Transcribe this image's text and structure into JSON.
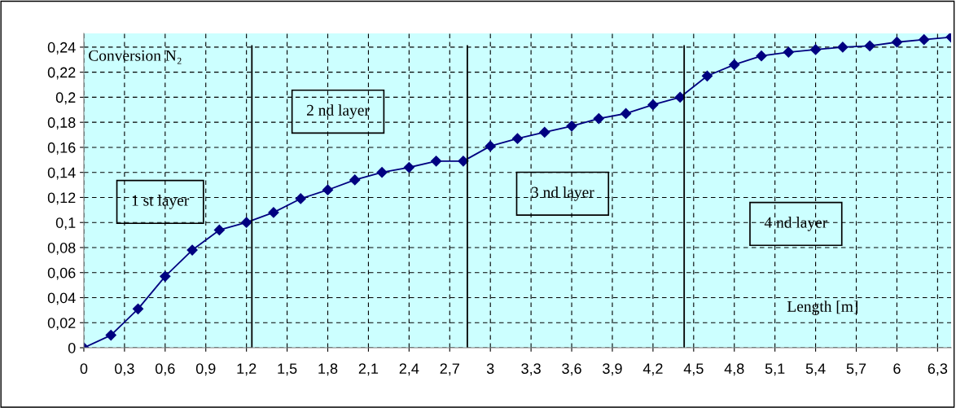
{
  "chart_data": {
    "type": "line",
    "xlabel": "Length [m]",
    "ylabel": "Conversion N₂",
    "x": [
      0,
      0.2,
      0.4,
      0.6,
      0.8,
      1.0,
      1.2,
      1.4,
      1.6,
      1.8,
      2.0,
      2.2,
      2.4,
      2.6,
      2.8,
      3.0,
      3.2,
      3.4,
      3.6,
      3.8,
      4.0,
      4.2,
      4.4,
      4.6,
      4.8,
      5.0,
      5.2,
      5.4,
      5.6,
      5.8,
      6.0,
      6.2,
      6.4
    ],
    "series": [
      {
        "color": "#000080",
        "values": [
          0,
          0.01,
          0.031,
          0.057,
          0.078,
          0.094,
          0.1,
          0.108,
          0.119,
          0.126,
          0.134,
          0.14,
          0.144,
          0.149,
          0.149,
          0.161,
          0.167,
          0.172,
          0.177,
          0.183,
          0.187,
          0.194,
          0.2,
          0.217,
          0.226,
          0.233,
          0.236,
          0.238,
          0.24,
          0.241,
          0.244,
          0.246,
          0.248
        ]
      }
    ],
    "marker": "diamond",
    "line_style": "solid",
    "grid": true,
    "legend": false,
    "xlim": [
      0,
      6.4
    ],
    "xticks": [
      0,
      {
        "value": 0.3,
        "label": "0,3"
      },
      {
        "value": 0.6,
        "label": "0,6"
      },
      {
        "value": 0.9,
        "label": "0,9"
      },
      {
        "value": 1.2,
        "label": "1,2"
      },
      {
        "value": 1.5,
        "label": "1,5"
      },
      {
        "value": 1.8,
        "label": "1,8"
      },
      {
        "value": 2.1,
        "label": "2,1"
      },
      {
        "value": 2.4,
        "label": "2,4"
      },
      {
        "value": 2.7,
        "label": "2,7"
      },
      3,
      {
        "value": 3.3,
        "label": "3,3"
      },
      {
        "value": 3.6,
        "label": "3,6"
      },
      {
        "value": 3.9,
        "label": "3,9"
      },
      {
        "value": 4.2,
        "label": "4,2"
      },
      {
        "value": 4.5,
        "label": "4,5"
      },
      {
        "value": 4.8,
        "label": "4,8"
      },
      {
        "value": 5.1,
        "label": "5,1"
      },
      {
        "value": 5.4,
        "label": "5,4"
      },
      {
        "value": 5.7,
        "label": "5,7"
      },
      6,
      {
        "value": 6.3,
        "label": "6,3"
      }
    ],
    "ylim": [
      0,
      0.251
    ],
    "yticks": [
      0,
      {
        "value": 0.02,
        "label": "0,02"
      },
      {
        "value": 0.04,
        "label": "0,04"
      },
      {
        "value": 0.06,
        "label": "0,06"
      },
      {
        "value": 0.08,
        "label": "0,08"
      },
      {
        "value": 0.1,
        "label": "0,1"
      },
      {
        "value": 0.12,
        "label": "0,12"
      },
      {
        "value": 0.14,
        "label": "0,14"
      },
      {
        "value": 0.16,
        "label": "0,16"
      },
      {
        "value": 0.18,
        "label": "0,18"
      },
      {
        "value": 0.2,
        "label": "0,2"
      },
      {
        "value": 0.22,
        "label": "0,22"
      },
      {
        "value": 0.24,
        "label": "0,24"
      }
    ],
    "ref_lines": [
      {
        "axis": "x",
        "value": 1.24,
        "color": "#000000"
      },
      {
        "axis": "x",
        "value": 2.83,
        "color": "#000000"
      },
      {
        "axis": "x",
        "value": 4.43,
        "color": "#000000"
      }
    ],
    "annotations": [
      "1 st layer",
      "2 nd layer",
      "3 nd layer",
      "4 nd layer"
    ]
  }
}
